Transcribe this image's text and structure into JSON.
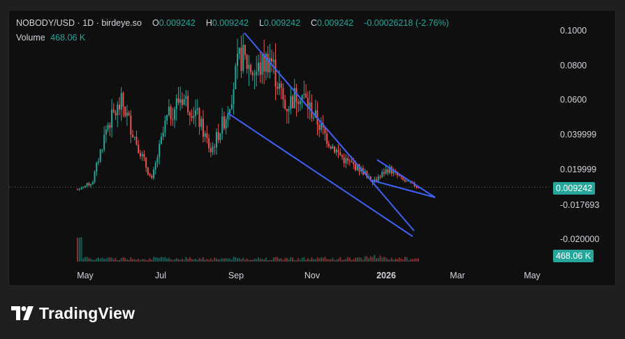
{
  "legend": {
    "symbol": "NOBODY/USD",
    "separator1": "·",
    "interval": "1D",
    "separator2": "·",
    "source": "birdeye.so",
    "open_label": "O",
    "open": "0.009242",
    "high_label": "H",
    "high": "0.009242",
    "low_label": "L",
    "low": "0.009242",
    "close_label": "C",
    "close": "0.009242",
    "change": "-0.00026218 (-2.76%)",
    "volume_label": "Volume",
    "volume": "468.06 K"
  },
  "price_axis": [
    "0.1000",
    "0.0800",
    "0.0600",
    "0.039999",
    "0.019999",
    "-0.017693",
    "-0.020000"
  ],
  "current_price_tag": "0.009242",
  "volume_tag": "468.06 K",
  "time_axis": [
    "May",
    "Jul",
    "Sep",
    "Nov",
    "2026",
    "Mar",
    "May"
  ],
  "brand": {
    "name": "TradingView"
  },
  "colors": {
    "up": "#26a69a",
    "down": "#ef5350",
    "trendline": "#3d62f5",
    "background": "#0f0f0f",
    "page": "#1e1e1e"
  },
  "chart_data": {
    "type": "candlestick",
    "title": "NOBODY/USD · 1D · birdeye.so",
    "ylim": [
      -0.026,
      0.104
    ],
    "y_ticks": [
      0.1,
      0.08,
      0.06,
      0.039999,
      0.019999,
      -0.017693,
      -0.02
    ],
    "last_price": 0.009242,
    "series": [
      {
        "name": "Price",
        "anchors": [
          [
            "May",
            0.008
          ],
          [
            "mid May",
            0.012
          ],
          [
            "late May",
            0.045
          ],
          [
            "early Jun",
            0.058
          ],
          [
            "mid Jun",
            0.035
          ],
          [
            "late Jun",
            0.013
          ],
          [
            "early Jul",
            0.048
          ],
          [
            "mid Jul",
            0.062
          ],
          [
            "late Jul",
            0.052
          ],
          [
            "early Aug",
            0.03
          ],
          [
            "mid Aug",
            0.05
          ],
          [
            "late Aug",
            0.085
          ],
          [
            "Sep",
            0.075
          ],
          [
            "mid Sep",
            0.085
          ],
          [
            "late Sep",
            0.055
          ],
          [
            "early Oct",
            0.065
          ],
          [
            "mid Oct",
            0.05
          ],
          [
            "late Oct",
            0.035
          ],
          [
            "Nov",
            0.025
          ],
          [
            "mid Nov",
            0.02
          ],
          [
            "Dec",
            0.013
          ],
          [
            "late Dec",
            0.02
          ],
          [
            "2026",
            0.013
          ],
          [
            "mid Jan",
            0.009242
          ]
        ]
      },
      {
        "name": "Volume",
        "last": "468.06 K"
      }
    ],
    "annotations": [
      "falling wedge trendlines (Sep–Jan)",
      "small falling wedge (Jan)"
    ]
  }
}
